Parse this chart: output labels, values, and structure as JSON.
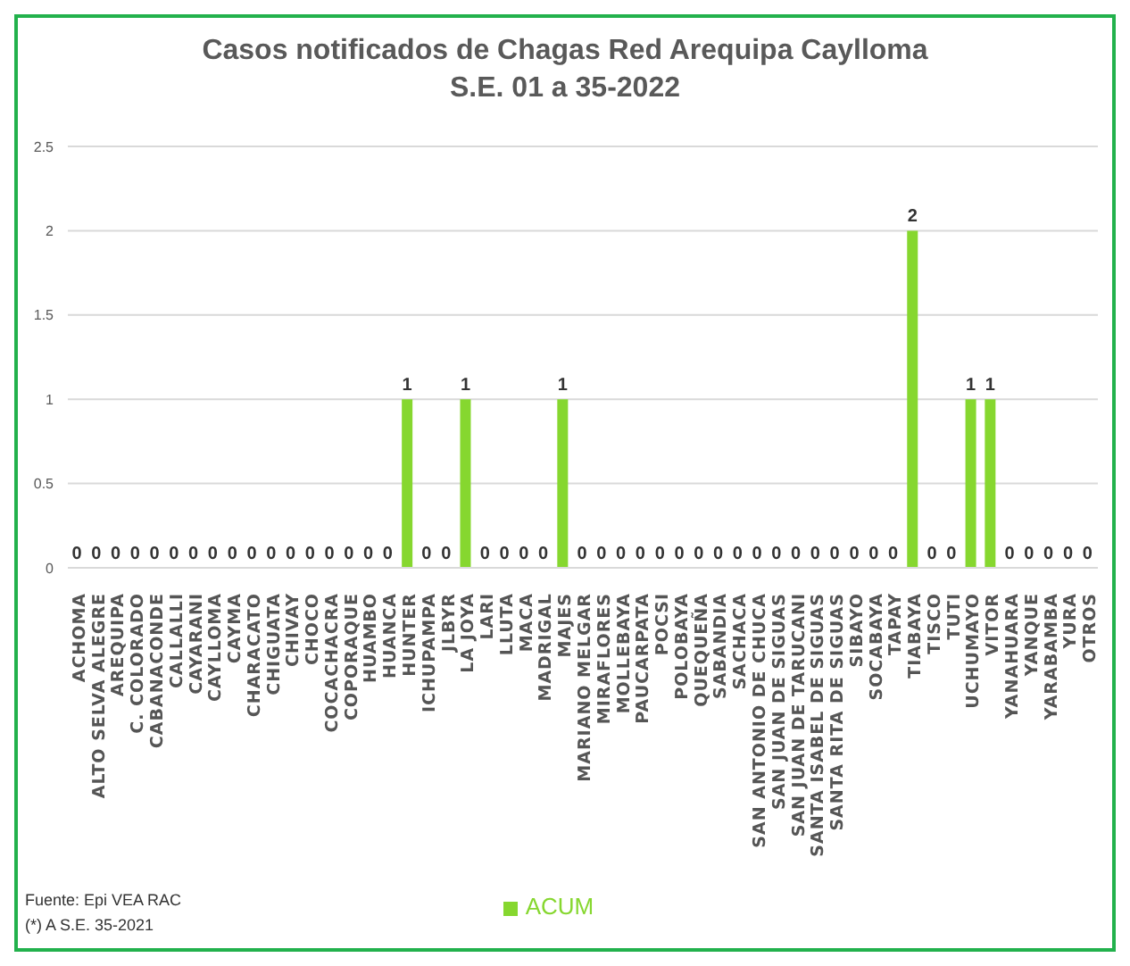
{
  "chart_data": {
    "type": "bar",
    "title": "Casos notificados de Chagas Red Arequipa Caylloma",
    "subtitle": "S.E. 01 a 35-2022",
    "categories": [
      "ACHOMA",
      "ALTO SELVA ALEGRE",
      "AREQUIPA",
      "C. COLORADO",
      "CABANACONDE",
      "CALLALLI",
      "CAYARANI",
      "CAYLLOMA",
      "CAYMA",
      "CHARACATO",
      "CHIGUATA",
      "CHIVAY",
      "CHOCO",
      "COCACHACRA",
      "COPORAQUE",
      "HUAMBO",
      "HUANCA",
      "HUNTER",
      "ICHUPAMPA",
      "JLBYR",
      "LA JOYA",
      "LARI",
      "LLUTA",
      "MACA",
      "MADRIGAL",
      "MAJES",
      "MARIANO MELGAR",
      "MIRAFLORES",
      "MOLLEBAYA",
      "PAUCARPATA",
      "POCSI",
      "POLOBAYA",
      "QUEQUEÑA",
      "SABANDIA",
      "SACHACA",
      "SAN ANTONIO DE CHUCA",
      "SAN JUAN DE SIGUAS",
      "SAN JUAN DE TARUCANI",
      "SANTA ISABEL DE SIGUAS",
      "SANTA RITA DE SIGUAS",
      "SIBAYO",
      "SOCABAYA",
      "TAPAY",
      "TIABAYA",
      "TISCO",
      "TUTI",
      "UCHUMAYO",
      "VITOR",
      "YANAHUARA",
      "YANQUE",
      "YARABAMBA",
      "YURA",
      "OTROS"
    ],
    "series": [
      {
        "name": "ACUM",
        "color": "#86d72f",
        "values": [
          0,
          0,
          0,
          0,
          0,
          0,
          0,
          0,
          0,
          0,
          0,
          0,
          0,
          0,
          0,
          0,
          0,
          1,
          0,
          0,
          1,
          0,
          0,
          0,
          0,
          1,
          0,
          0,
          0,
          0,
          0,
          0,
          0,
          0,
          0,
          0,
          0,
          0,
          0,
          0,
          0,
          0,
          0,
          2,
          0,
          0,
          1,
          1,
          0,
          0,
          0,
          0,
          0
        ]
      }
    ],
    "ylim": [
      0,
      2.5
    ],
    "yticks": [
      0,
      0.5,
      1,
      1.5,
      2,
      2.5
    ],
    "grid": "y",
    "legend": "bottom",
    "data_labels": true,
    "annotations": [
      "Fuente:  Epi VEA RAC",
      "(*) A S.E. 35-2021"
    ]
  }
}
